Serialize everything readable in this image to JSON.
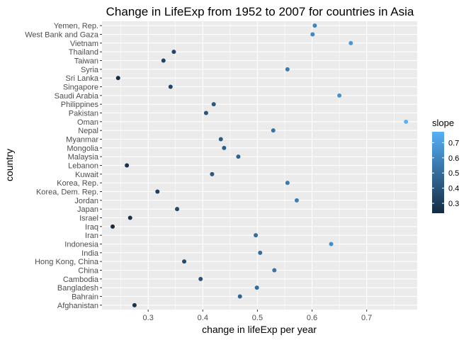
{
  "chart_data": {
    "type": "scatter",
    "title": "Change in LifeExp from 1952 to 2007 for countries in Asia",
    "xlabel": "change in lifeExp per year",
    "ylabel": "country",
    "xlim": [
      0.2155,
      0.7925
    ],
    "x_ticks": [
      0.3,
      0.4,
      0.5,
      0.6,
      0.7
    ],
    "x_tick_labels": [
      "0.3",
      "0.4",
      "0.5",
      "0.6",
      "0.7"
    ],
    "grid": true,
    "legend": {
      "title": "slope",
      "position": "right",
      "min": 0.235,
      "max": 0.772,
      "low_color": "#132B43",
      "high_color": "#56B1F7",
      "ticks": [
        0.3,
        0.4,
        0.5,
        0.6,
        0.7
      ],
      "tick_labels": [
        "0.3",
        "0.4",
        "0.5",
        "0.6",
        "0.7"
      ]
    },
    "categories": [
      "Afghanistan",
      "Bahrain",
      "Bangladesh",
      "Cambodia",
      "China",
      "Hong Kong, China",
      "India",
      "Indonesia",
      "Iran",
      "Iraq",
      "Israel",
      "Japan",
      "Jordan",
      "Korea, Dem. Rep.",
      "Korea, Rep.",
      "Kuwait",
      "Lebanon",
      "Malaysia",
      "Mongolia",
      "Myanmar",
      "Nepal",
      "Oman",
      "Pakistan",
      "Philippines",
      "Saudi Arabia",
      "Singapore",
      "Sri Lanka",
      "Syria",
      "Taiwan",
      "Thailand",
      "Vietnam",
      "West Bank and Gaza",
      "Yemen, Rep."
    ],
    "values": [
      0.275,
      0.468,
      0.499,
      0.396,
      0.531,
      0.366,
      0.505,
      0.635,
      0.497,
      0.235,
      0.267,
      0.353,
      0.572,
      0.317,
      0.555,
      0.417,
      0.261,
      0.465,
      0.439,
      0.433,
      0.529,
      0.772,
      0.406,
      0.42,
      0.65,
      0.341,
      0.245,
      0.555,
      0.328,
      0.347,
      0.671,
      0.601,
      0.605
    ]
  }
}
